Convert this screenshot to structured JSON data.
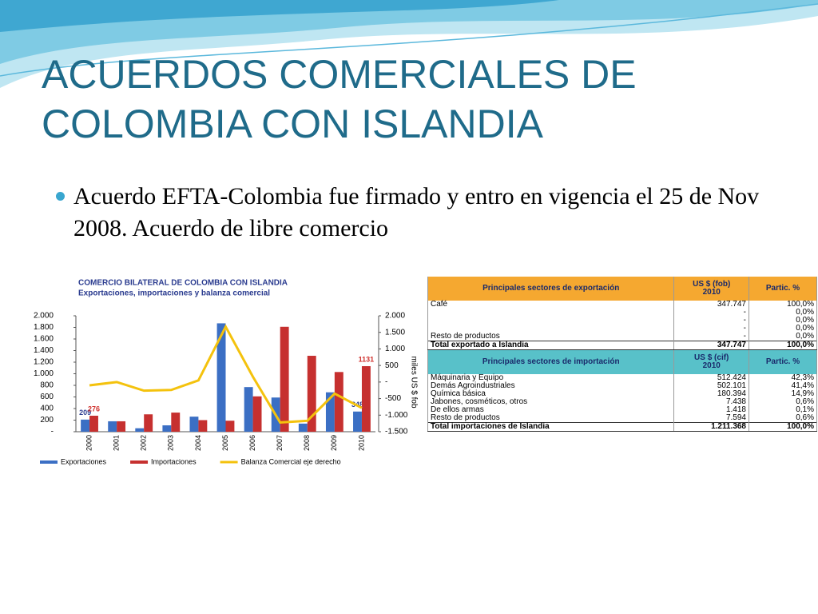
{
  "slide": {
    "title": "ACUERDOS COMERCIALES DE COLOMBIA CON ISLANDIA",
    "bullets": [
      "Acuerdo EFTA-Colombia fue firmado y entro en vigencia el 25 de Nov 2008. Acuerdo de libre comercio"
    ]
  },
  "chart_data": {
    "type": "bar",
    "title": "COMERCIO BILATERAL DE COLOMBIA CON ISLANDIA",
    "subtitle": "Exportaciones, importaciones y balanza comercial",
    "y2_label": "miles US $ fob",
    "categories": [
      "2000",
      "2001",
      "2002",
      "2003",
      "2004",
      "2005",
      "2006",
      "2007",
      "2008",
      "2009",
      "2010"
    ],
    "series": [
      {
        "name": "Exportaciones",
        "color": "#3b6fc4",
        "values": [
          209,
          180,
          60,
          110,
          260,
          1870,
          770,
          590,
          140,
          680,
          348
        ],
        "value_labels": [
          "209",
          null,
          null,
          null,
          null,
          null,
          null,
          null,
          null,
          null,
          "348"
        ]
      },
      {
        "name": "Importaciones",
        "color": "#c6302f",
        "values": [
          276,
          180,
          300,
          330,
          200,
          190,
          610,
          1810,
          1310,
          1030,
          1131
        ],
        "value_labels": [
          "276",
          null,
          null,
          null,
          null,
          null,
          null,
          null,
          null,
          null,
          "1131"
        ]
      },
      {
        "name": "Balanza Comercial eje derecho",
        "color": "#f4c20d",
        "type": "line",
        "axis": "y2",
        "values": [
          -100,
          0,
          -260,
          -240,
          50,
          1670,
          160,
          -1220,
          -1170,
          -350,
          -783
        ]
      }
    ],
    "ylim": [
      0,
      2000
    ],
    "yticks": [
      {
        "value": 0,
        "label": "-"
      },
      {
        "value": 200,
        "label": "200"
      },
      {
        "value": 400,
        "label": "400"
      },
      {
        "value": 600,
        "label": "600"
      },
      {
        "value": 800,
        "label": "800"
      },
      {
        "value": 1000,
        "label": "1.000"
      },
      {
        "value": 1200,
        "label": "1.200"
      },
      {
        "value": 1400,
        "label": "1.400"
      },
      {
        "value": 1600,
        "label": "1.600"
      },
      {
        "value": 1800,
        "label": "1.800"
      },
      {
        "value": 2000,
        "label": "2.000"
      }
    ],
    "y2lim": [
      -1500,
      2000
    ],
    "y2ticks": [
      {
        "value": -1500,
        "label": "-1.500"
      },
      {
        "value": -1000,
        "label": "-1.000"
      },
      -500,
      {
        "value": 0,
        "label": "-"
      },
      500,
      {
        "value": 1000,
        "label": "1.000"
      },
      {
        "value": 1500,
        "label": "1.500"
      },
      {
        "value": 2000,
        "label": "2.000"
      }
    ]
  },
  "table": {
    "export_header": [
      "Principales sectores de exportación",
      "US $ (fob)",
      "2010",
      "Partic. %"
    ],
    "export_rows": [
      [
        "Café",
        "347.747",
        "100,0%"
      ],
      [
        null,
        "-",
        "0,0%"
      ],
      [
        null,
        "-",
        "0,0%"
      ],
      [
        null,
        "-",
        "0,0%"
      ],
      [
        "Resto de productos",
        "-",
        "0,0%"
      ]
    ],
    "export_total": [
      "Total exportado a Islandia",
      "347.747",
      "100,0%"
    ],
    "import_header": [
      "Principales sectores de importación",
      "US $ (cif)",
      "2010",
      "Partic. %"
    ],
    "import_rows": [
      [
        "Máquinaria y Equipo",
        "512.424",
        "42,3%"
      ],
      [
        "Demás Agroindustriales",
        "502.101",
        "41,4%"
      ],
      [
        "Química básica",
        "180.394",
        "14,9%"
      ],
      [
        "Jabones, cosméticos, otros",
        "7.438",
        "0,6%"
      ],
      [
        "De ellos armas",
        "1.418",
        "0,1%"
      ],
      [
        "Resto de productos",
        "7.594",
        "0,6%"
      ]
    ],
    "import_total": [
      "Total importaciones de Islandia",
      "1.211.368",
      "100,0%"
    ]
  }
}
